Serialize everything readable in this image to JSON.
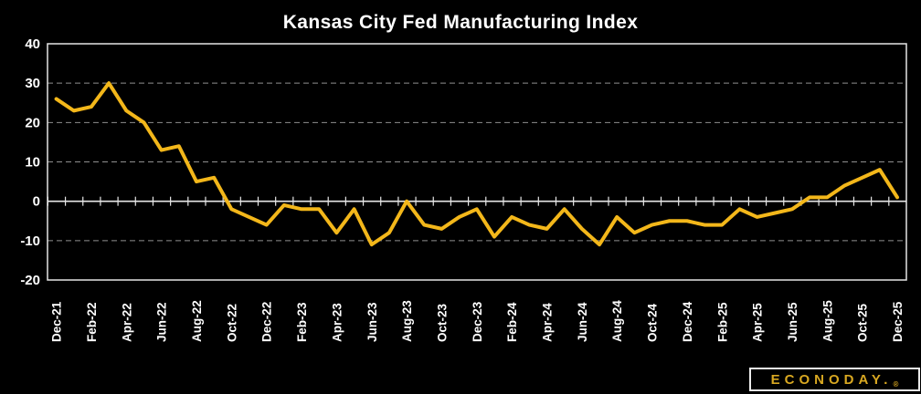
{
  "title": "Kansas City Fed Manufacturing Index",
  "colors": {
    "background": "#000000",
    "line": "#F3B71A",
    "axis": "#E6E6E6",
    "gridline": "#8F8F8F",
    "text": "#FFFFFF",
    "logo_text": "#D9A821"
  },
  "logo": {
    "brand": "ECONODAY.",
    "registered_mark": "®"
  },
  "chart_data": {
    "type": "line",
    "title": "Kansas City Fed Manufacturing Index",
    "xlabel": "",
    "ylabel": "",
    "ylim": [
      -20,
      40
    ],
    "yticks": [
      40,
      30,
      20,
      10,
      0,
      -10,
      -20
    ],
    "grid_lines_dashed": [
      30,
      20,
      10,
      -10
    ],
    "zero_axis_solid": true,
    "legend": "none",
    "x_label_step": 2,
    "x_tick_labels_shown": [
      "Dec-21",
      "Feb-22",
      "Apr-22",
      "Jun-22",
      "Aug-22",
      "Oct-22",
      "Dec-22",
      "Feb-23",
      "Apr-23",
      "Jun-23",
      "Aug-23",
      "Oct-23",
      "Dec-23",
      "Feb-24",
      "Apr-24",
      "Jun-24",
      "Aug-24",
      "Oct-24",
      "Dec-24",
      "Feb-25",
      "Apr-25",
      "Jun-25",
      "Aug-25",
      "Oct-25",
      "Dec-25"
    ],
    "x": [
      "Dec-21",
      "Jan-22",
      "Feb-22",
      "Mar-22",
      "Apr-22",
      "May-22",
      "Jun-22",
      "Jul-22",
      "Aug-22",
      "Sep-22",
      "Oct-22",
      "Nov-22",
      "Dec-22",
      "Jan-23",
      "Feb-23",
      "Mar-23",
      "Apr-23",
      "May-23",
      "Jun-23",
      "Jul-23",
      "Aug-23",
      "Sep-23",
      "Oct-23",
      "Nov-23",
      "Dec-23",
      "Jan-24",
      "Feb-24",
      "Mar-24",
      "Apr-24",
      "May-24",
      "Jun-24",
      "Jul-24",
      "Aug-24",
      "Sep-24",
      "Oct-24",
      "Nov-24",
      "Dec-24",
      "Jan-25",
      "Feb-25",
      "Mar-25",
      "Apr-25",
      "May-25",
      "Jun-25",
      "Jul-25",
      "Aug-25",
      "Sep-25",
      "Oct-25",
      "Nov-25",
      "Dec-25"
    ],
    "values": [
      26,
      23,
      24,
      30,
      23,
      20,
      13,
      14,
      5,
      6,
      -2,
      -4,
      -6,
      -1,
      -2,
      -2,
      -8,
      -2,
      -11,
      -8,
      0,
      -6,
      -7,
      -4,
      -2,
      -9,
      -4,
      -6,
      -7,
      -2,
      -7,
      -11,
      -4,
      -8,
      -6,
      -5,
      -5,
      -6,
      -6,
      -2,
      -4,
      -3,
      -2,
      1,
      1,
      4,
      6,
      8,
      1
    ]
  }
}
